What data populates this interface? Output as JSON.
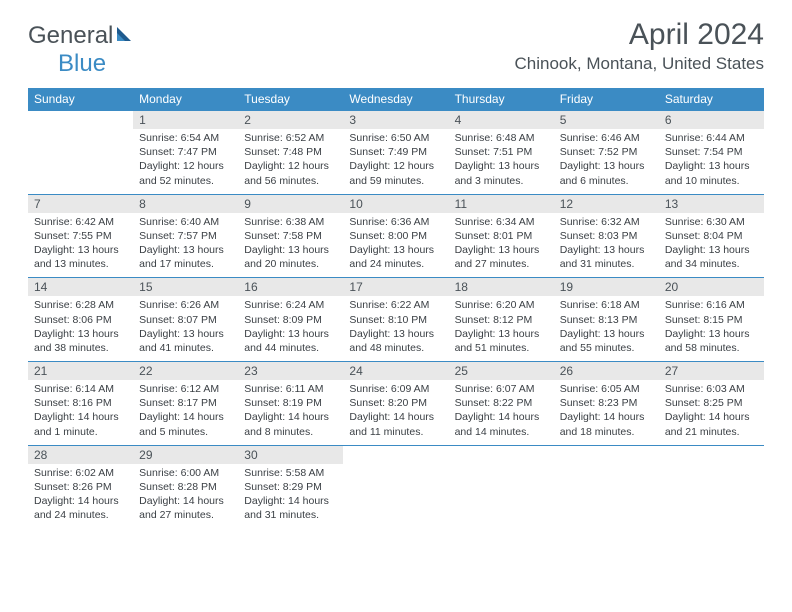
{
  "logo": {
    "text1": "General",
    "text2": "Blue"
  },
  "title": "April 2024",
  "location": "Chinook, Montana, United States",
  "colors": {
    "header_bg": "#3b8bc4",
    "header_fg": "#ffffff",
    "numrow_bg": "#e8e8e8",
    "text": "#4a5258",
    "cell_text": "#3a3f44",
    "page_bg": "#ffffff"
  },
  "day_names": [
    "Sunday",
    "Monday",
    "Tuesday",
    "Wednesday",
    "Thursday",
    "Friday",
    "Saturday"
  ],
  "weeks": [
    {
      "nums": [
        "",
        "1",
        "2",
        "3",
        "4",
        "5",
        "6"
      ],
      "cells": [
        null,
        {
          "sunrise": "Sunrise: 6:54 AM",
          "sunset": "Sunset: 7:47 PM",
          "day1": "Daylight: 12 hours",
          "day2": "and 52 minutes."
        },
        {
          "sunrise": "Sunrise: 6:52 AM",
          "sunset": "Sunset: 7:48 PM",
          "day1": "Daylight: 12 hours",
          "day2": "and 56 minutes."
        },
        {
          "sunrise": "Sunrise: 6:50 AM",
          "sunset": "Sunset: 7:49 PM",
          "day1": "Daylight: 12 hours",
          "day2": "and 59 minutes."
        },
        {
          "sunrise": "Sunrise: 6:48 AM",
          "sunset": "Sunset: 7:51 PM",
          "day1": "Daylight: 13 hours",
          "day2": "and 3 minutes."
        },
        {
          "sunrise": "Sunrise: 6:46 AM",
          "sunset": "Sunset: 7:52 PM",
          "day1": "Daylight: 13 hours",
          "day2": "and 6 minutes."
        },
        {
          "sunrise": "Sunrise: 6:44 AM",
          "sunset": "Sunset: 7:54 PM",
          "day1": "Daylight: 13 hours",
          "day2": "and 10 minutes."
        }
      ]
    },
    {
      "nums": [
        "7",
        "8",
        "9",
        "10",
        "11",
        "12",
        "13"
      ],
      "cells": [
        {
          "sunrise": "Sunrise: 6:42 AM",
          "sunset": "Sunset: 7:55 PM",
          "day1": "Daylight: 13 hours",
          "day2": "and 13 minutes."
        },
        {
          "sunrise": "Sunrise: 6:40 AM",
          "sunset": "Sunset: 7:57 PM",
          "day1": "Daylight: 13 hours",
          "day2": "and 17 minutes."
        },
        {
          "sunrise": "Sunrise: 6:38 AM",
          "sunset": "Sunset: 7:58 PM",
          "day1": "Daylight: 13 hours",
          "day2": "and 20 minutes."
        },
        {
          "sunrise": "Sunrise: 6:36 AM",
          "sunset": "Sunset: 8:00 PM",
          "day1": "Daylight: 13 hours",
          "day2": "and 24 minutes."
        },
        {
          "sunrise": "Sunrise: 6:34 AM",
          "sunset": "Sunset: 8:01 PM",
          "day1": "Daylight: 13 hours",
          "day2": "and 27 minutes."
        },
        {
          "sunrise": "Sunrise: 6:32 AM",
          "sunset": "Sunset: 8:03 PM",
          "day1": "Daylight: 13 hours",
          "day2": "and 31 minutes."
        },
        {
          "sunrise": "Sunrise: 6:30 AM",
          "sunset": "Sunset: 8:04 PM",
          "day1": "Daylight: 13 hours",
          "day2": "and 34 minutes."
        }
      ]
    },
    {
      "nums": [
        "14",
        "15",
        "16",
        "17",
        "18",
        "19",
        "20"
      ],
      "cells": [
        {
          "sunrise": "Sunrise: 6:28 AM",
          "sunset": "Sunset: 8:06 PM",
          "day1": "Daylight: 13 hours",
          "day2": "and 38 minutes."
        },
        {
          "sunrise": "Sunrise: 6:26 AM",
          "sunset": "Sunset: 8:07 PM",
          "day1": "Daylight: 13 hours",
          "day2": "and 41 minutes."
        },
        {
          "sunrise": "Sunrise: 6:24 AM",
          "sunset": "Sunset: 8:09 PM",
          "day1": "Daylight: 13 hours",
          "day2": "and 44 minutes."
        },
        {
          "sunrise": "Sunrise: 6:22 AM",
          "sunset": "Sunset: 8:10 PM",
          "day1": "Daylight: 13 hours",
          "day2": "and 48 minutes."
        },
        {
          "sunrise": "Sunrise: 6:20 AM",
          "sunset": "Sunset: 8:12 PM",
          "day1": "Daylight: 13 hours",
          "day2": "and 51 minutes."
        },
        {
          "sunrise": "Sunrise: 6:18 AM",
          "sunset": "Sunset: 8:13 PM",
          "day1": "Daylight: 13 hours",
          "day2": "and 55 minutes."
        },
        {
          "sunrise": "Sunrise: 6:16 AM",
          "sunset": "Sunset: 8:15 PM",
          "day1": "Daylight: 13 hours",
          "day2": "and 58 minutes."
        }
      ]
    },
    {
      "nums": [
        "21",
        "22",
        "23",
        "24",
        "25",
        "26",
        "27"
      ],
      "cells": [
        {
          "sunrise": "Sunrise: 6:14 AM",
          "sunset": "Sunset: 8:16 PM",
          "day1": "Daylight: 14 hours",
          "day2": "and 1 minute."
        },
        {
          "sunrise": "Sunrise: 6:12 AM",
          "sunset": "Sunset: 8:17 PM",
          "day1": "Daylight: 14 hours",
          "day2": "and 5 minutes."
        },
        {
          "sunrise": "Sunrise: 6:11 AM",
          "sunset": "Sunset: 8:19 PM",
          "day1": "Daylight: 14 hours",
          "day2": "and 8 minutes."
        },
        {
          "sunrise": "Sunrise: 6:09 AM",
          "sunset": "Sunset: 8:20 PM",
          "day1": "Daylight: 14 hours",
          "day2": "and 11 minutes."
        },
        {
          "sunrise": "Sunrise: 6:07 AM",
          "sunset": "Sunset: 8:22 PM",
          "day1": "Daylight: 14 hours",
          "day2": "and 14 minutes."
        },
        {
          "sunrise": "Sunrise: 6:05 AM",
          "sunset": "Sunset: 8:23 PM",
          "day1": "Daylight: 14 hours",
          "day2": "and 18 minutes."
        },
        {
          "sunrise": "Sunrise: 6:03 AM",
          "sunset": "Sunset: 8:25 PM",
          "day1": "Daylight: 14 hours",
          "day2": "and 21 minutes."
        }
      ]
    },
    {
      "nums": [
        "28",
        "29",
        "30",
        "",
        "",
        "",
        ""
      ],
      "cells": [
        {
          "sunrise": "Sunrise: 6:02 AM",
          "sunset": "Sunset: 8:26 PM",
          "day1": "Daylight: 14 hours",
          "day2": "and 24 minutes."
        },
        {
          "sunrise": "Sunrise: 6:00 AM",
          "sunset": "Sunset: 8:28 PM",
          "day1": "Daylight: 14 hours",
          "day2": "and 27 minutes."
        },
        {
          "sunrise": "Sunrise: 5:58 AM",
          "sunset": "Sunset: 8:29 PM",
          "day1": "Daylight: 14 hours",
          "day2": "and 31 minutes."
        },
        null,
        null,
        null,
        null
      ]
    }
  ]
}
